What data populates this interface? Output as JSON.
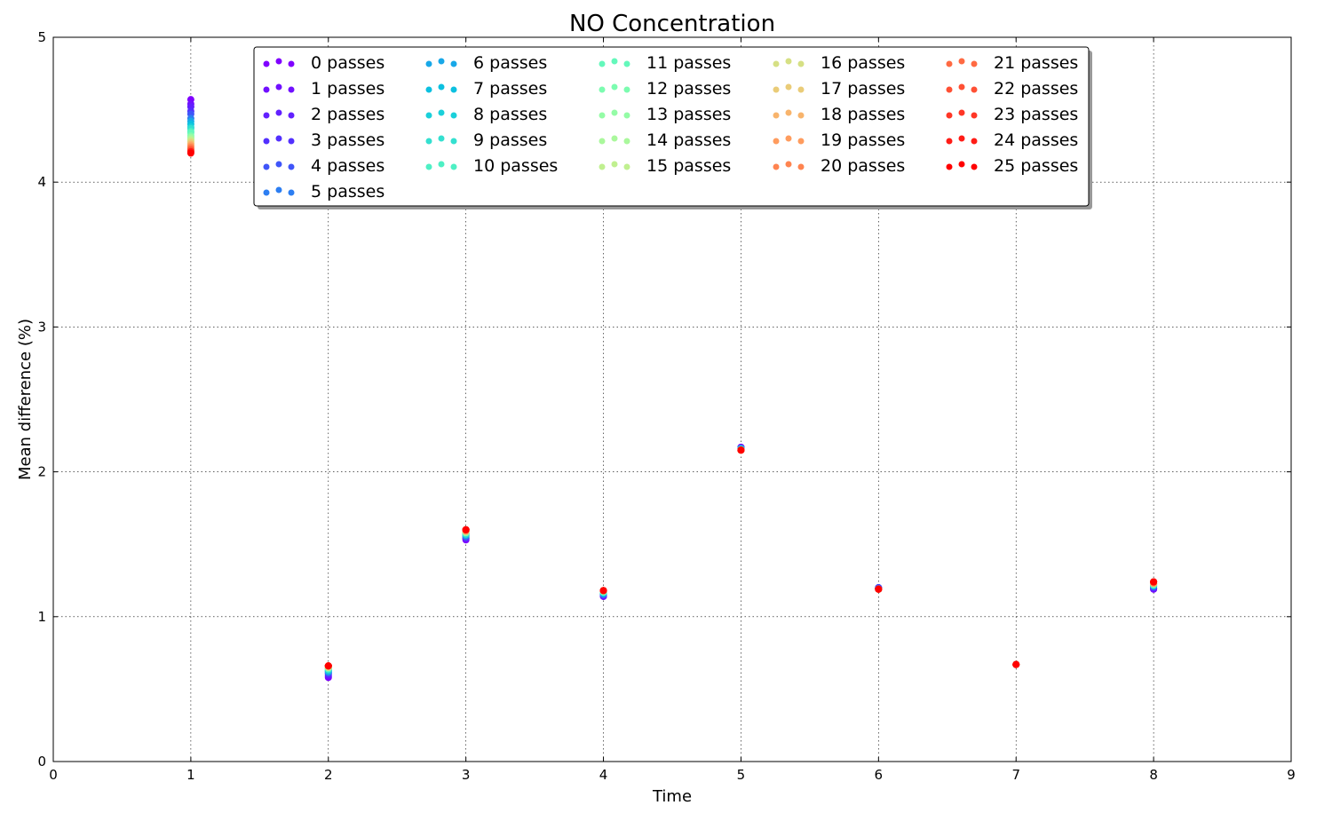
{
  "chart_data": {
    "type": "scatter",
    "title": "NO Concentration",
    "xlabel": "Time",
    "ylabel": "Mean difference (%)",
    "xlim": [
      0,
      9
    ],
    "ylim": [
      0,
      5
    ],
    "xticks": [
      0,
      1,
      2,
      3,
      4,
      5,
      6,
      7,
      8,
      9
    ],
    "yticks": [
      0,
      1,
      2,
      3,
      4,
      5
    ],
    "grid": true,
    "legend_placement": "top-center",
    "legend_columns": 5,
    "x": [
      1,
      2,
      3,
      4,
      5,
      6,
      7,
      8
    ],
    "series": [
      {
        "name": "0 passes",
        "color": "#8000ff",
        "values": [
          4.57,
          0.58,
          1.53,
          1.14,
          2.17,
          1.2,
          0.67,
          1.19
        ]
      },
      {
        "name": "1 passes",
        "color": "#7110ff",
        "values": [
          4.54,
          0.59,
          1.54,
          1.14,
          2.17,
          1.2,
          0.67,
          1.19
        ]
      },
      {
        "name": "2 passes",
        "color": "#6220ff",
        "values": [
          4.52,
          0.6,
          1.54,
          1.15,
          2.16,
          1.2,
          0.67,
          1.2
        ]
      },
      {
        "name": "3 passes",
        "color": "#5330fe",
        "values": [
          4.49,
          0.61,
          1.55,
          1.15,
          2.16,
          1.2,
          0.67,
          1.2
        ]
      },
      {
        "name": "4 passes",
        "color": "#3f55f9",
        "values": [
          4.47,
          0.61,
          1.55,
          1.15,
          2.16,
          1.2,
          0.67,
          1.21
        ]
      },
      {
        "name": "5 passes",
        "color": "#2c7ef2",
        "values": [
          4.44,
          0.62,
          1.56,
          1.16,
          2.16,
          1.19,
          0.67,
          1.21
        ]
      },
      {
        "name": "6 passes",
        "color": "#18a8e8",
        "values": [
          4.42,
          0.62,
          1.56,
          1.16,
          2.16,
          1.19,
          0.67,
          1.21
        ]
      },
      {
        "name": "7 passes",
        "color": "#0cc0e0",
        "values": [
          4.4,
          0.63,
          1.57,
          1.16,
          2.16,
          1.19,
          0.67,
          1.22
        ]
      },
      {
        "name": "8 passes",
        "color": "#1ad0da",
        "values": [
          4.38,
          0.63,
          1.57,
          1.17,
          2.16,
          1.19,
          0.67,
          1.22
        ]
      },
      {
        "name": "9 passes",
        "color": "#34e0d0",
        "values": [
          4.37,
          0.64,
          1.57,
          1.17,
          2.15,
          1.19,
          0.67,
          1.22
        ]
      },
      {
        "name": "10 passes",
        "color": "#4ef0c4",
        "values": [
          4.35,
          0.64,
          1.58,
          1.17,
          2.15,
          1.19,
          0.67,
          1.22
        ]
      },
      {
        "name": "11 passes",
        "color": "#64f8bb",
        "values": [
          4.34,
          0.64,
          1.58,
          1.17,
          2.15,
          1.19,
          0.67,
          1.22
        ]
      },
      {
        "name": "12 passes",
        "color": "#7cfcb0",
        "values": [
          4.32,
          0.65,
          1.58,
          1.17,
          2.15,
          1.19,
          0.67,
          1.23
        ]
      },
      {
        "name": "13 passes",
        "color": "#94fca6",
        "values": [
          4.31,
          0.65,
          1.58,
          1.18,
          2.15,
          1.19,
          0.67,
          1.23
        ]
      },
      {
        "name": "14 passes",
        "color": "#aaf89c",
        "values": [
          4.3,
          0.65,
          1.59,
          1.18,
          2.15,
          1.19,
          0.67,
          1.23
        ]
      },
      {
        "name": "15 passes",
        "color": "#c0f090",
        "values": [
          4.29,
          0.65,
          1.59,
          1.18,
          2.15,
          1.19,
          0.67,
          1.23
        ]
      },
      {
        "name": "16 passes",
        "color": "#d6e084",
        "values": [
          4.28,
          0.65,
          1.59,
          1.18,
          2.15,
          1.19,
          0.67,
          1.23
        ]
      },
      {
        "name": "17 passes",
        "color": "#eacc78",
        "values": [
          4.27,
          0.66,
          1.59,
          1.18,
          2.15,
          1.19,
          0.67,
          1.23
        ]
      },
      {
        "name": "18 passes",
        "color": "#f8b46c",
        "values": [
          4.26,
          0.66,
          1.59,
          1.18,
          2.15,
          1.19,
          0.67,
          1.23
        ]
      },
      {
        "name": "19 passes",
        "color": "#ff9c5e",
        "values": [
          4.25,
          0.66,
          1.59,
          1.18,
          2.15,
          1.19,
          0.67,
          1.23
        ]
      },
      {
        "name": "20 passes",
        "color": "#ff8450",
        "values": [
          4.24,
          0.66,
          1.6,
          1.18,
          2.15,
          1.19,
          0.67,
          1.24
        ]
      },
      {
        "name": "21 passes",
        "color": "#ff6a42",
        "values": [
          4.23,
          0.66,
          1.6,
          1.18,
          2.15,
          1.19,
          0.67,
          1.24
        ]
      },
      {
        "name": "22 passes",
        "color": "#ff5034",
        "values": [
          4.22,
          0.66,
          1.6,
          1.18,
          2.15,
          1.19,
          0.67,
          1.24
        ]
      },
      {
        "name": "23 passes",
        "color": "#ff3626",
        "values": [
          4.21,
          0.66,
          1.6,
          1.18,
          2.15,
          1.19,
          0.67,
          1.24
        ]
      },
      {
        "name": "24 passes",
        "color": "#ff1c16",
        "values": [
          4.21,
          0.66,
          1.6,
          1.18,
          2.15,
          1.19,
          0.67,
          1.24
        ]
      },
      {
        "name": "25 passes",
        "color": "#ff0000",
        "values": [
          4.2,
          0.66,
          1.6,
          1.18,
          2.15,
          1.19,
          0.67,
          1.24
        ]
      }
    ]
  }
}
